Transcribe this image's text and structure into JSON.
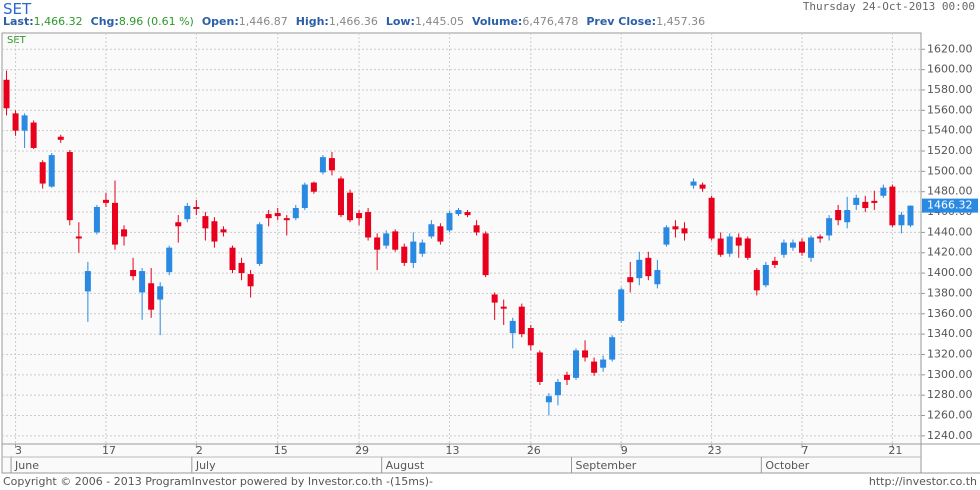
{
  "header": {
    "title": "SET",
    "date": "Thursday 24-Oct-2013 00:00",
    "quote": [
      {
        "label": "Last:",
        "value": "1,466.32",
        "color": "#2a9a2a"
      },
      {
        "label": "Chg:",
        "value": "8.96 (0.61 %)",
        "color": "#2a9a2a"
      },
      {
        "label": "Open:",
        "value": "1,446.87",
        "color": "#888888"
      },
      {
        "label": "High:",
        "value": "1,466.36",
        "color": "#888888"
      },
      {
        "label": "Low:",
        "value": "1,445.05",
        "color": "#888888"
      },
      {
        "label": "Volume:",
        "value": "6,476,478",
        "color": "#888888"
      },
      {
        "label": "Prev Close:",
        "value": "1,457.36",
        "color": "#888888"
      }
    ]
  },
  "chart_data": {
    "type": "candlestick",
    "symbol": "SET",
    "categories": [
      null,
      "3",
      null,
      null,
      null,
      null,
      null,
      null,
      null,
      null,
      null,
      "17",
      null,
      null,
      null,
      null,
      null,
      null,
      null,
      null,
      null,
      "2",
      null,
      null,
      null,
      null,
      null,
      null,
      null,
      null,
      "15",
      null,
      null,
      null,
      null,
      null,
      null,
      null,
      null,
      "29",
      null,
      null,
      null,
      null,
      null,
      null,
      null,
      null,
      null,
      "13",
      null,
      null,
      null,
      null,
      null,
      null,
      null,
      null,
      "26",
      null,
      null,
      null,
      null,
      null,
      null,
      null,
      null,
      null,
      "9",
      null,
      null,
      null,
      null,
      null,
      null,
      null,
      null,
      null,
      "23",
      null,
      null,
      null,
      null,
      null,
      null,
      null,
      null,
      null,
      "7",
      null,
      null,
      null,
      null,
      null,
      null,
      null,
      null,
      null,
      "21",
      null,
      null
    ],
    "months": [
      {
        "label": "June",
        "at": 1
      },
      {
        "label": "July",
        "at": 21
      },
      {
        "label": "August",
        "at": 42
      },
      {
        "label": "September",
        "at": 63
      },
      {
        "label": "October",
        "at": 84
      }
    ],
    "open": [
      1590,
      1557,
      1540,
      1548,
      1509,
      1485,
      1534,
      1519,
      1436,
      1382,
      1440,
      1472,
      1469,
      1443,
      1403,
      1381,
      1390,
      1374,
      1401,
      1450,
      1453,
      1465,
      1456,
      1451,
      1443,
      1425,
      1410,
      1399,
      1409,
      1458,
      1459,
      1454,
      1454,
      1464,
      1489,
      1499,
      1513,
      1493,
      1479,
      1459,
      1460,
      1435,
      1427,
      1441,
      1426,
      1410,
      1419,
      1436,
      1446,
      1442,
      1458,
      1460,
      1447,
      1439,
      1379,
      1367,
      1341,
      1367,
      1346,
      1322,
      1273,
      1280,
      1300,
      1297,
      1324,
      1313,
      1307,
      1315,
      1353,
      1396,
      1395,
      1415,
      1389,
      1428,
      1446,
      1444,
      1486,
      1487,
      1474,
      1434,
      1419,
      1435,
      1434,
      1403,
      1388,
      1412,
      1418,
      1425,
      1431,
      1415,
      1436,
      1437,
      1462,
      1450,
      1467,
      1470,
      1471,
      1476,
      1485,
      1447,
      1446.87
    ],
    "high": [
      1599,
      1560,
      1557,
      1550,
      1511,
      1518,
      1536,
      1521,
      1450,
      1411,
      1467,
      1479,
      1491,
      1447,
      1415,
      1405,
      1405,
      1391,
      1427,
      1457,
      1469,
      1472,
      1460,
      1455,
      1446,
      1427,
      1415,
      1403,
      1450,
      1462,
      1464,
      1457,
      1467,
      1489,
      1490,
      1516,
      1519,
      1495,
      1482,
      1462,
      1464,
      1439,
      1442,
      1443,
      1429,
      1440,
      1433,
      1452,
      1449,
      1461,
      1464,
      1462,
      1452,
      1441,
      1381,
      1374,
      1356,
      1370,
      1349,
      1324,
      1282,
      1296,
      1303,
      1326,
      1334,
      1317,
      1319,
      1339,
      1386,
      1411,
      1421,
      1421,
      1413,
      1447,
      1452,
      1450,
      1493,
      1489,
      1476,
      1440,
      1439,
      1439,
      1436,
      1405,
      1411,
      1416,
      1433,
      1433,
      1434,
      1437,
      1438,
      1457,
      1467,
      1475,
      1477,
      1476,
      1481,
      1487,
      1487,
      1460,
      1466.36
    ],
    "low": [
      1555,
      1535,
      1523,
      1522,
      1483,
      1484,
      1528,
      1447,
      1420,
      1352,
      1438,
      1465,
      1423,
      1427,
      1393,
      1354,
      1356,
      1339,
      1398,
      1430,
      1450,
      1457,
      1432,
      1425,
      1436,
      1400,
      1393,
      1376,
      1407,
      1446,
      1452,
      1437,
      1452,
      1462,
      1478,
      1497,
      1496,
      1455,
      1450,
      1447,
      1432,
      1403,
      1424,
      1421,
      1407,
      1405,
      1416,
      1434,
      1428,
      1440,
      1456,
      1455,
      1437,
      1396,
      1354,
      1349,
      1326,
      1337,
      1324,
      1290,
      1260,
      1270,
      1290,
      1295,
      1313,
      1299,
      1303,
      1313,
      1351,
      1381,
      1388,
      1393,
      1385,
      1426,
      1435,
      1432,
      1483,
      1480,
      1432,
      1416,
      1416,
      1415,
      1413,
      1378,
      1386,
      1405,
      1415,
      1422,
      1417,
      1411,
      1430,
      1432,
      1447,
      1444,
      1462,
      1460,
      1462,
      1474,
      1445,
      1439,
      1445.05
    ],
    "close": [
      1562,
      1540,
      1555,
      1523,
      1488,
      1516,
      1531,
      1452,
      1434,
      1402,
      1465,
      1469,
      1428,
      1436,
      1397,
      1402,
      1364,
      1387,
      1425,
      1446,
      1466,
      1463,
      1444,
      1431,
      1440,
      1403,
      1400,
      1387,
      1448,
      1454,
      1456,
      1452,
      1464,
      1487,
      1480,
      1514,
      1501,
      1457,
      1452,
      1454,
      1435,
      1423,
      1439,
      1423,
      1410,
      1431,
      1430,
      1448,
      1431,
      1459,
      1462,
      1457,
      1440,
      1398,
      1371,
      1365,
      1353,
      1340,
      1329,
      1293,
      1279,
      1293,
      1295,
      1324,
      1317,
      1302,
      1315,
      1337,
      1384,
      1391,
      1413,
      1397,
      1403,
      1445,
      1443,
      1439,
      1490,
      1483,
      1434,
      1418,
      1436,
      1427,
      1415,
      1383,
      1408,
      1408,
      1430,
      1430,
      1420,
      1435,
      1434,
      1454,
      1452,
      1462,
      1474,
      1464,
      1469,
      1484,
      1447,
      1457.36,
      1466.32
    ],
    "up_color": "#2a8ae2",
    "down_color": "#e8001c",
    "last_tag": "1466.32",
    "ylim": [
      1232,
      1636
    ],
    "yticks": [
      {
        "value": 1240,
        "label": "1240.00"
      },
      {
        "value": 1260,
        "label": "1260.00"
      },
      {
        "value": 1280,
        "label": "1280.00"
      },
      {
        "value": 1300,
        "label": "1300.00"
      },
      {
        "value": 1320,
        "label": "1320.00"
      },
      {
        "value": 1340,
        "label": "1340.00"
      },
      {
        "value": 1360,
        "label": "1360.00"
      },
      {
        "value": 1380,
        "label": "1380.00"
      },
      {
        "value": 1400,
        "label": "1400.00"
      },
      {
        "value": 1420,
        "label": "1420.00"
      },
      {
        "value": 1440,
        "label": "1440.00"
      },
      {
        "value": 1460,
        "label": "1460.00"
      },
      {
        "value": 1480,
        "label": "1480.00"
      },
      {
        "value": 1500,
        "label": "1500.00"
      },
      {
        "value": 1520,
        "label": "1520.00"
      },
      {
        "value": 1540,
        "label": "1540.00"
      },
      {
        "value": 1560,
        "label": "1560.00"
      },
      {
        "value": 1580,
        "label": "1580.00"
      },
      {
        "value": 1600,
        "label": "1600.00"
      },
      {
        "value": 1620,
        "label": "1620.00"
      }
    ],
    "grid": true
  },
  "footer": {
    "copyright": "Copyright © 2006 - 2013 ProgramInvestor powered by Investor.co.th -(15ms)-",
    "url": "http://investor.co.th"
  }
}
